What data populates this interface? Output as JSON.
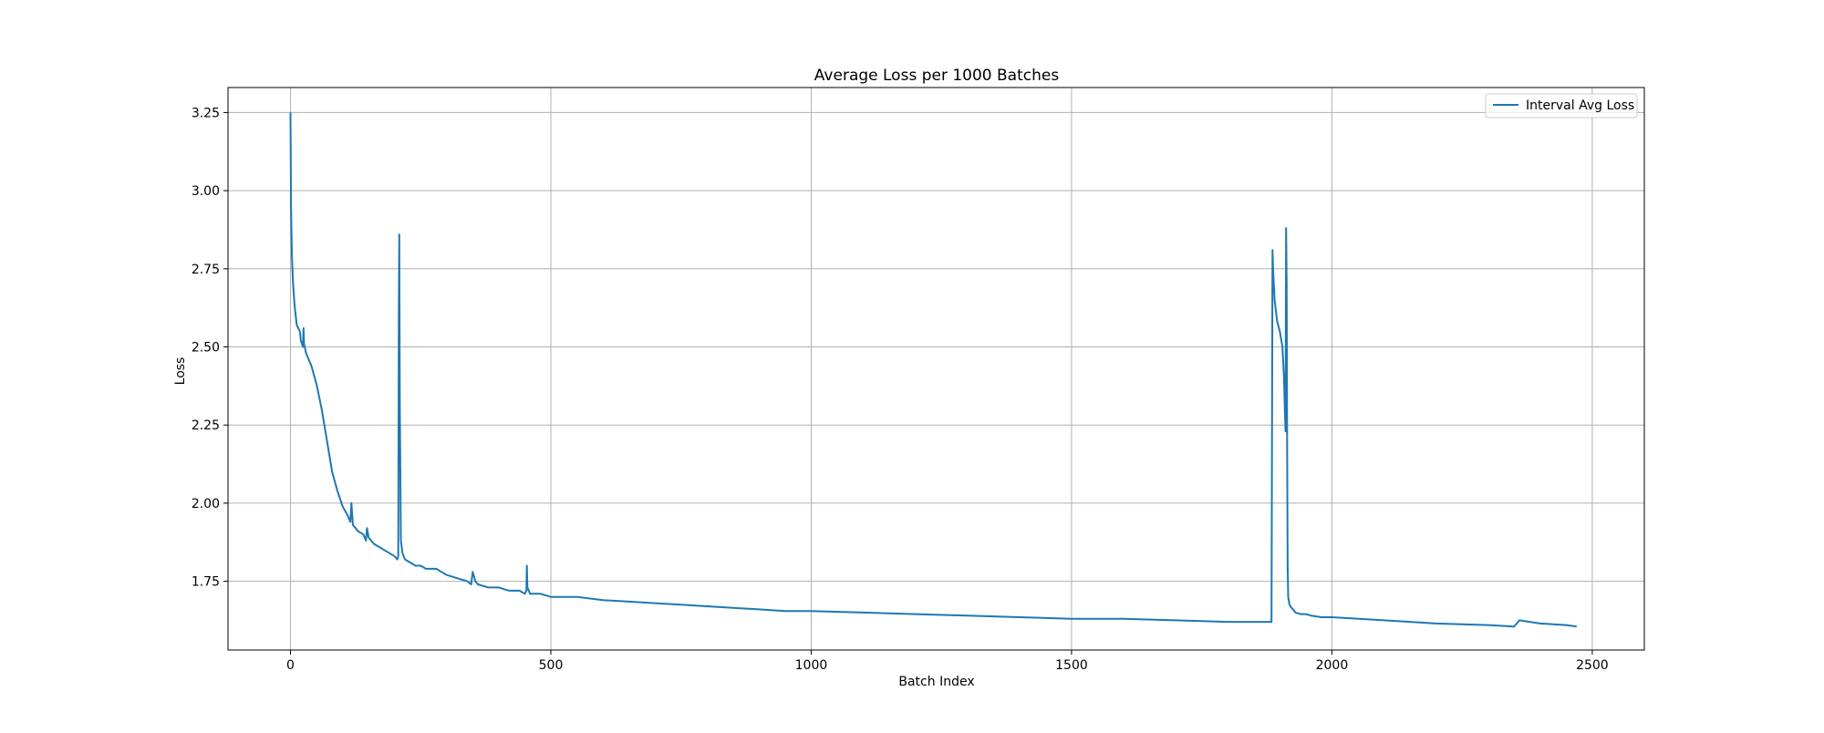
{
  "chart_data": {
    "type": "line",
    "title": "Average Loss per 1000 Batches",
    "xlabel": "Batch Index",
    "ylabel": "Loss",
    "xlim": [
      -120,
      2600
    ],
    "ylim": [
      1.53,
      3.33
    ],
    "xticks": [
      0,
      500,
      1000,
      1500,
      2000,
      2500
    ],
    "yticks": [
      1.75,
      2.0,
      2.25,
      2.5,
      2.75,
      3.0,
      3.25
    ],
    "xtick_labels": [
      "0",
      "500",
      "1000",
      "1500",
      "2000",
      "2500"
    ],
    "ytick_labels": [
      "1.75",
      "2.00",
      "2.25",
      "2.50",
      "2.75",
      "3.00",
      "3.25"
    ],
    "grid": true,
    "legend": {
      "position": "top-right",
      "entries": [
        "Interval Avg Loss"
      ]
    },
    "series": [
      {
        "name": "Interval Avg Loss",
        "color": "#1f77b4",
        "x": [
          0,
          1,
          2,
          3,
          5,
          8,
          12,
          18,
          20,
          24,
          25,
          26,
          30,
          40,
          50,
          60,
          70,
          80,
          90,
          100,
          110,
          115,
          117,
          120,
          130,
          140,
          145,
          147,
          150,
          160,
          170,
          180,
          190,
          200,
          205,
          207,
          208,
          209,
          210,
          212,
          215,
          220,
          230,
          240,
          250,
          260,
          270,
          280,
          290,
          300,
          320,
          340,
          347,
          350,
          355,
          360,
          380,
          400,
          420,
          440,
          450,
          453,
          454,
          455,
          460,
          480,
          500,
          550,
          600,
          650,
          700,
          750,
          800,
          850,
          900,
          950,
          1000,
          1100,
          1200,
          1300,
          1400,
          1500,
          1600,
          1700,
          1800,
          1850,
          1880,
          1884,
          1886,
          1887,
          1890,
          1895,
          1900,
          1905,
          1908,
          1910,
          1911,
          1912,
          1913,
          1914,
          1915,
          1916,
          1918,
          1920,
          1925,
          1930,
          1940,
          1950,
          1960,
          1980,
          2000,
          2100,
          2200,
          2300,
          2350,
          2360,
          2400,
          2450,
          2470
        ],
        "y": [
          3.25,
          2.95,
          2.85,
          2.78,
          2.7,
          2.63,
          2.57,
          2.55,
          2.52,
          2.5,
          2.56,
          2.51,
          2.48,
          2.44,
          2.38,
          2.3,
          2.2,
          2.1,
          2.04,
          1.99,
          1.96,
          1.94,
          2.0,
          1.93,
          1.91,
          1.9,
          1.88,
          1.92,
          1.89,
          1.87,
          1.86,
          1.85,
          1.84,
          1.83,
          1.82,
          1.83,
          2.6,
          2.86,
          2.3,
          1.88,
          1.84,
          1.82,
          1.81,
          1.8,
          1.8,
          1.79,
          1.79,
          1.79,
          1.78,
          1.77,
          1.76,
          1.75,
          1.74,
          1.78,
          1.75,
          1.74,
          1.73,
          1.73,
          1.72,
          1.72,
          1.71,
          1.72,
          1.8,
          1.73,
          1.71,
          1.71,
          1.7,
          1.7,
          1.69,
          1.685,
          1.68,
          1.675,
          1.67,
          1.665,
          1.66,
          1.655,
          1.655,
          1.65,
          1.645,
          1.64,
          1.635,
          1.63,
          1.63,
          1.625,
          1.62,
          1.62,
          1.62,
          1.62,
          2.81,
          2.75,
          2.65,
          2.58,
          2.55,
          2.5,
          2.4,
          2.28,
          2.23,
          2.88,
          2.7,
          2.2,
          1.8,
          1.7,
          1.68,
          1.67,
          1.66,
          1.65,
          1.645,
          1.645,
          1.64,
          1.635,
          1.635,
          1.625,
          1.615,
          1.61,
          1.605,
          1.625,
          1.615,
          1.61,
          1.605
        ]
      }
    ]
  }
}
